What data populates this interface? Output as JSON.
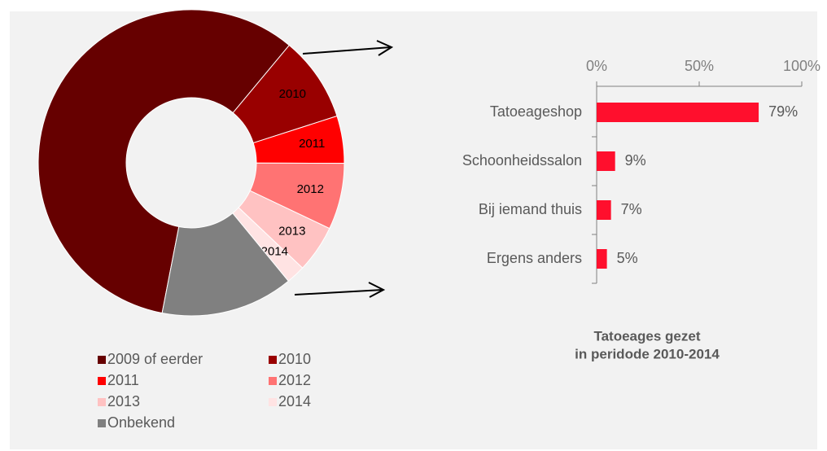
{
  "chart_data": [
    {
      "type": "donut",
      "categories": [
        "2009 of eerder",
        "2010",
        "2011",
        "2012",
        "2013",
        "2014",
        "Onbekend"
      ],
      "values": [
        58,
        9,
        5,
        7,
        5,
        2,
        14
      ],
      "colors": [
        "#660000",
        "#990000",
        "#ff0000",
        "#ff7373",
        "#ffc2c2",
        "#ffe3e3",
        "#808080"
      ],
      "inner_labels": [
        false,
        true,
        true,
        true,
        true,
        true,
        false
      ],
      "legend": "bottom"
    },
    {
      "type": "hbar",
      "title": [
        "Tatoeages gezet",
        "in peridode 2010-2014"
      ],
      "categories": [
        "Tatoeageshop",
        "Schoonheidssalon",
        "Bij iemand thuis",
        "Ergens anders"
      ],
      "values": [
        79,
        9,
        7,
        5
      ],
      "value_labels": [
        "79%",
        "9%",
        "7%",
        "5%"
      ],
      "color": "#ff0f2d",
      "xlim": [
        0,
        100
      ],
      "xticks": [
        {
          "value": 0,
          "label": "0%"
        },
        {
          "value": 50,
          "label": "50%"
        },
        {
          "value": 100,
          "label": "100%"
        }
      ]
    }
  ]
}
